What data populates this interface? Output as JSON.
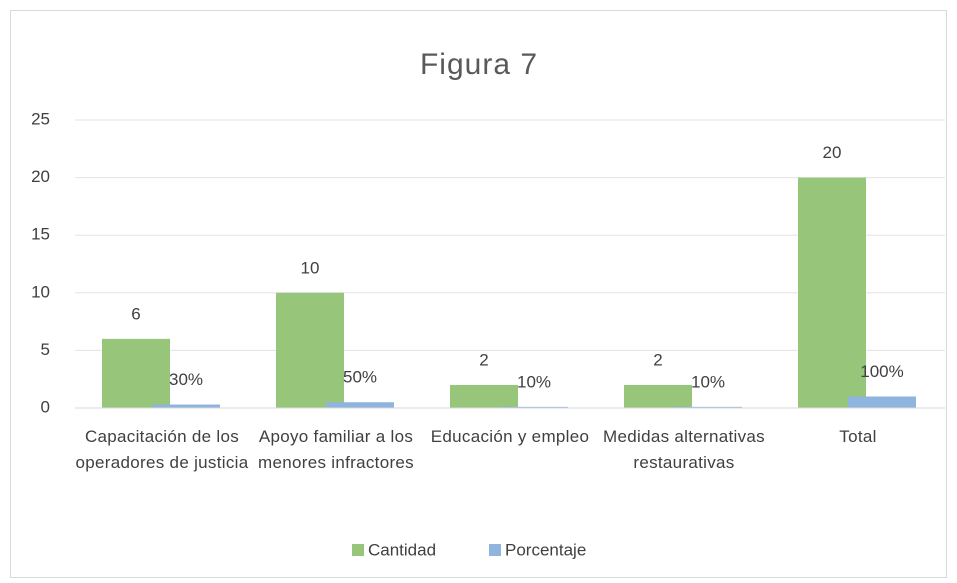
{
  "chart_data": {
    "type": "bar",
    "title": "Figura 7",
    "categories": [
      "Capacitación de los operadores de justicia",
      "Apoyo familiar a los menores infractores",
      "Educación y empleo",
      "Medidas alternativas restaurativas",
      "Total"
    ],
    "series": [
      {
        "name": "Cantidad",
        "color": "#97c57a",
        "values": [
          6,
          10,
          2,
          2,
          20
        ],
        "value_labels": [
          "6",
          "10",
          "2",
          "2",
          "20"
        ]
      },
      {
        "name": "Porcentaje",
        "color": "#8fb4de",
        "values": [
          0.3,
          0.5,
          0.1,
          0.1,
          1
        ],
        "value_labels": [
          "30%",
          "50%",
          "10%",
          "10%",
          "100%"
        ]
      }
    ],
    "ylim": [
      0,
      25
    ],
    "yticks": [
      0,
      5,
      10,
      15,
      20,
      25
    ],
    "grid": true,
    "legend": "bottom"
  }
}
